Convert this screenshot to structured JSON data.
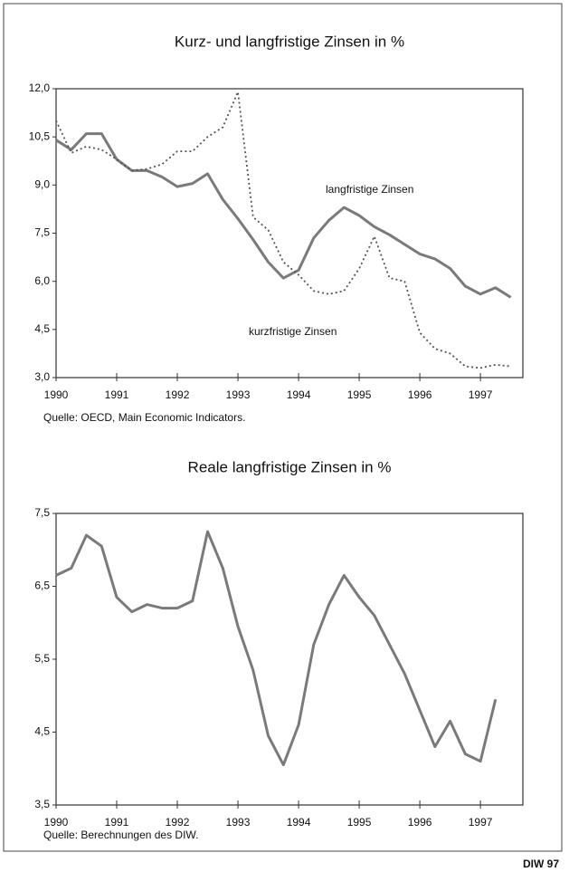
{
  "chart_data": [
    {
      "type": "line",
      "title": "Kurz- und langfristige Zinsen in %",
      "source": "Quelle: OECD, Main Economic Indicators.",
      "x": [
        1990,
        1990.25,
        1990.5,
        1990.75,
        1991,
        1991.25,
        1991.5,
        1991.75,
        1992,
        1992.25,
        1992.5,
        1992.75,
        1993,
        1993.25,
        1993.5,
        1993.75,
        1994,
        1994.25,
        1994.5,
        1994.75,
        1995,
        1995.25,
        1995.5,
        1995.75,
        1996,
        1996.25,
        1996.5,
        1996.75,
        1997,
        1997.25,
        1997.5
      ],
      "series": [
        {
          "name": "langfristige Zinsen",
          "color": "#7a7a7a",
          "style": "solid",
          "values": [
            10.4,
            10.1,
            10.6,
            10.6,
            9.8,
            9.45,
            9.45,
            9.25,
            8.95,
            9.05,
            9.35,
            8.55,
            7.95,
            7.3,
            6.6,
            6.1,
            6.35,
            7.35,
            7.9,
            8.3,
            8.05,
            7.7,
            7.45,
            7.15,
            6.85,
            6.7,
            6.4,
            5.85,
            5.6,
            5.8,
            5.5
          ]
        },
        {
          "name": "kurzfristige Zinsen",
          "color": "#555555",
          "style": "dotted",
          "values": [
            11.0,
            10.0,
            10.2,
            10.1,
            9.8,
            9.45,
            9.5,
            9.65,
            10.05,
            10.05,
            10.5,
            10.8,
            11.9,
            8.0,
            7.6,
            6.6,
            6.2,
            5.7,
            5.6,
            5.7,
            6.4,
            7.4,
            6.1,
            6.0,
            4.4,
            3.9,
            3.75,
            3.35,
            3.3,
            3.4,
            3.35
          ]
        }
      ],
      "xlim": [
        1990,
        1997.7
      ],
      "xticks": [
        1990,
        1991,
        1992,
        1993,
        1994,
        1995,
        1996,
        1997
      ],
      "ylim": [
        3.0,
        12.0
      ],
      "yticks": [
        {
          "value": 3.0,
          "label": "3,0"
        },
        {
          "value": 4.5,
          "label": "4,5"
        },
        {
          "value": 6.0,
          "label": "6,0"
        },
        {
          "value": 7.5,
          "label": "7,5"
        },
        {
          "value": 9.0,
          "label": "9,0"
        },
        {
          "value": 10.5,
          "label": "10,5"
        },
        {
          "value": 12.0,
          "label": "12,0"
        }
      ],
      "grid": false
    },
    {
      "type": "line",
      "title": "Reale langfristige Zinsen in %",
      "source": "Quelle: Berechnungen des DIW.",
      "x": [
        1990,
        1990.25,
        1990.5,
        1990.75,
        1991,
        1991.25,
        1991.5,
        1991.75,
        1992,
        1992.25,
        1992.5,
        1992.75,
        1993,
        1993.25,
        1993.5,
        1993.75,
        1994,
        1994.25,
        1994.5,
        1994.75,
        1995,
        1995.25,
        1995.5,
        1995.75,
        1996,
        1996.25,
        1996.5,
        1996.75,
        1997,
        1997.25
      ],
      "series": [
        {
          "color": "#7a7a7a",
          "style": "solid",
          "values": [
            6.65,
            6.75,
            7.2,
            7.05,
            6.35,
            6.15,
            6.25,
            6.2,
            6.2,
            6.3,
            7.25,
            6.75,
            5.95,
            5.35,
            4.45,
            4.05,
            4.6,
            5.7,
            6.25,
            6.65,
            6.35,
            6.1,
            5.7,
            5.3,
            4.8,
            4.3,
            4.65,
            4.2,
            4.1,
            4.95
          ]
        }
      ],
      "xlim": [
        1990,
        1997.7
      ],
      "xticks": [
        1990,
        1991,
        1992,
        1993,
        1994,
        1995,
        1996,
        1997
      ],
      "ylim": [
        3.5,
        7.5
      ],
      "yticks": [
        {
          "value": 3.5,
          "label": "3,5"
        },
        {
          "value": 4.5,
          "label": "4,5"
        },
        {
          "value": 5.5,
          "label": "5,5"
        },
        {
          "value": 6.5,
          "label": "6,5"
        },
        {
          "value": 7.5,
          "label": "7,5"
        }
      ],
      "grid": false
    }
  ],
  "credit": "DIW 97"
}
